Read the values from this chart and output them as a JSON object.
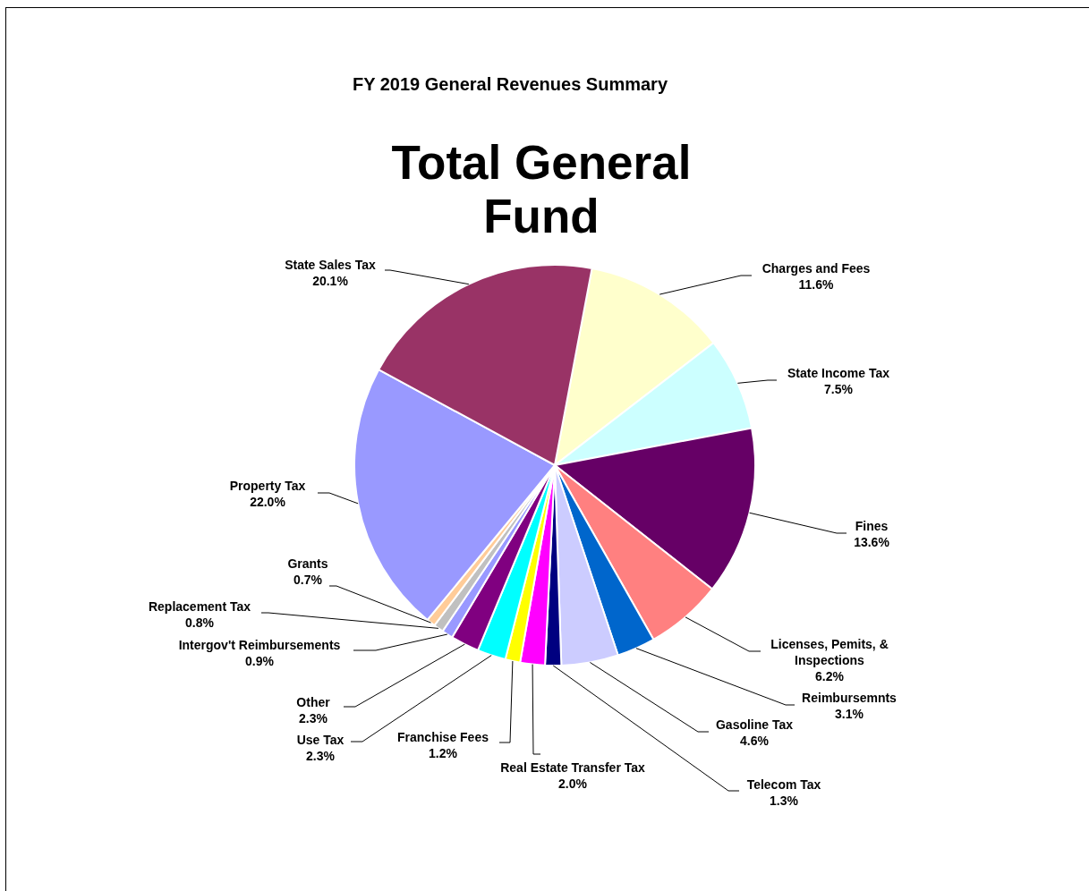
{
  "chart_data": {
    "type": "pie",
    "title": "FY 2019 General Revenues Summary",
    "subtitle": "Total General Fund",
    "categories": [
      "Charges and Fees",
      "State Income Tax",
      "Fines",
      "Licenses, Pemits, & Inspections",
      "Reimbursemnts",
      "Gasoline Tax",
      "Telecom Tax",
      "Real Estate Transfer Tax",
      "Franchise Fees",
      "Use Tax",
      "Other",
      "Intergov't Reimbursements",
      "Replacement Tax",
      "Grants",
      "Property Tax",
      "State Sales Tax"
    ],
    "values": [
      11.6,
      7.5,
      13.6,
      6.2,
      3.1,
      4.6,
      1.3,
      2.0,
      1.2,
      2.3,
      2.3,
      0.9,
      0.8,
      0.7,
      22.0,
      20.1
    ],
    "value_labels": [
      "11.6%",
      "7.5%",
      "13.6%",
      "6.2%",
      "3.1%",
      "4.6%",
      "1.3%",
      "2.0%",
      "1.2%",
      "2.3%",
      "2.3%",
      "0.9%",
      "0.8%",
      "0.7%",
      "22.0%",
      "20.1%"
    ],
    "colors": [
      "#ffffcc",
      "#ccffff",
      "#660066",
      "#ff8080",
      "#0066cc",
      "#ccccff",
      "#000080",
      "#ff00ff",
      "#ffff00",
      "#00ffff",
      "#800080",
      "#9999ff",
      "#c0c0c0",
      "#ffcc99",
      "#9999ff",
      "#993366"
    ],
    "legend": false
  }
}
